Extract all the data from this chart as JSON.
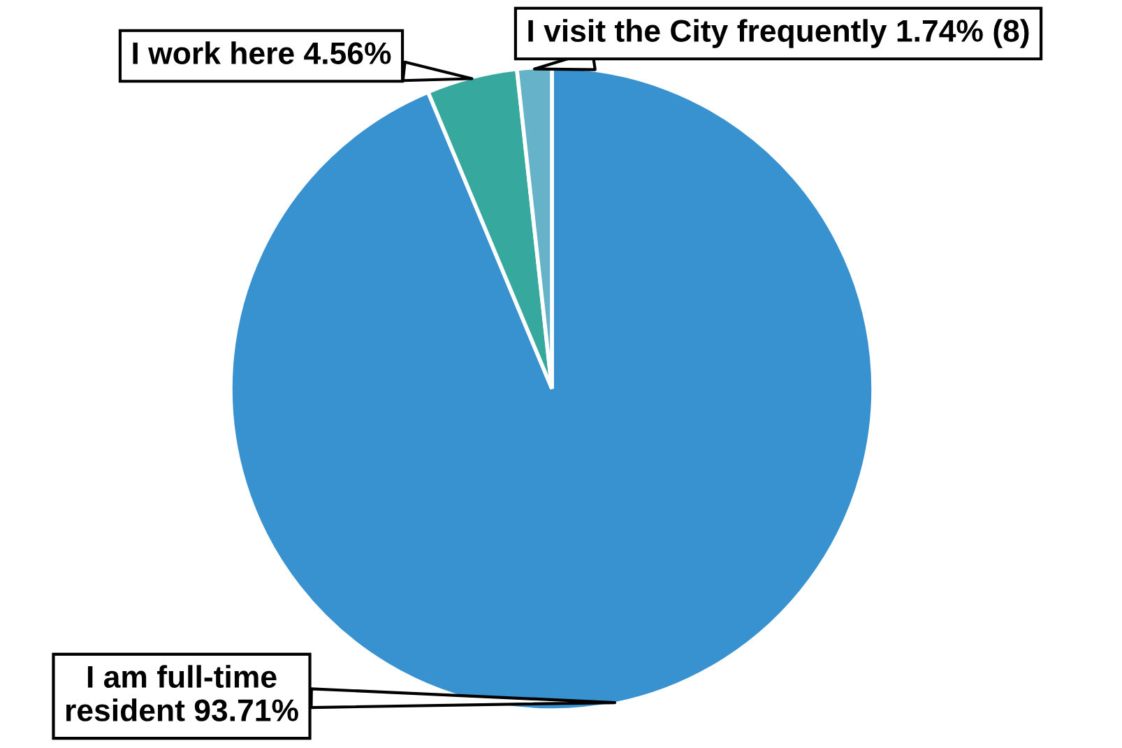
{
  "chart_data": {
    "type": "pie",
    "categories": [
      "I am full-time resident",
      "I work here",
      "I visit the City frequently"
    ],
    "values": [
      93.71,
      4.56,
      1.74
    ],
    "colors": [
      "#3792cf",
      "#36a89e",
      "#66b2c9"
    ],
    "value_labels": [
      "93.71%",
      "4.56%",
      "1.74% (8)"
    ]
  }
}
